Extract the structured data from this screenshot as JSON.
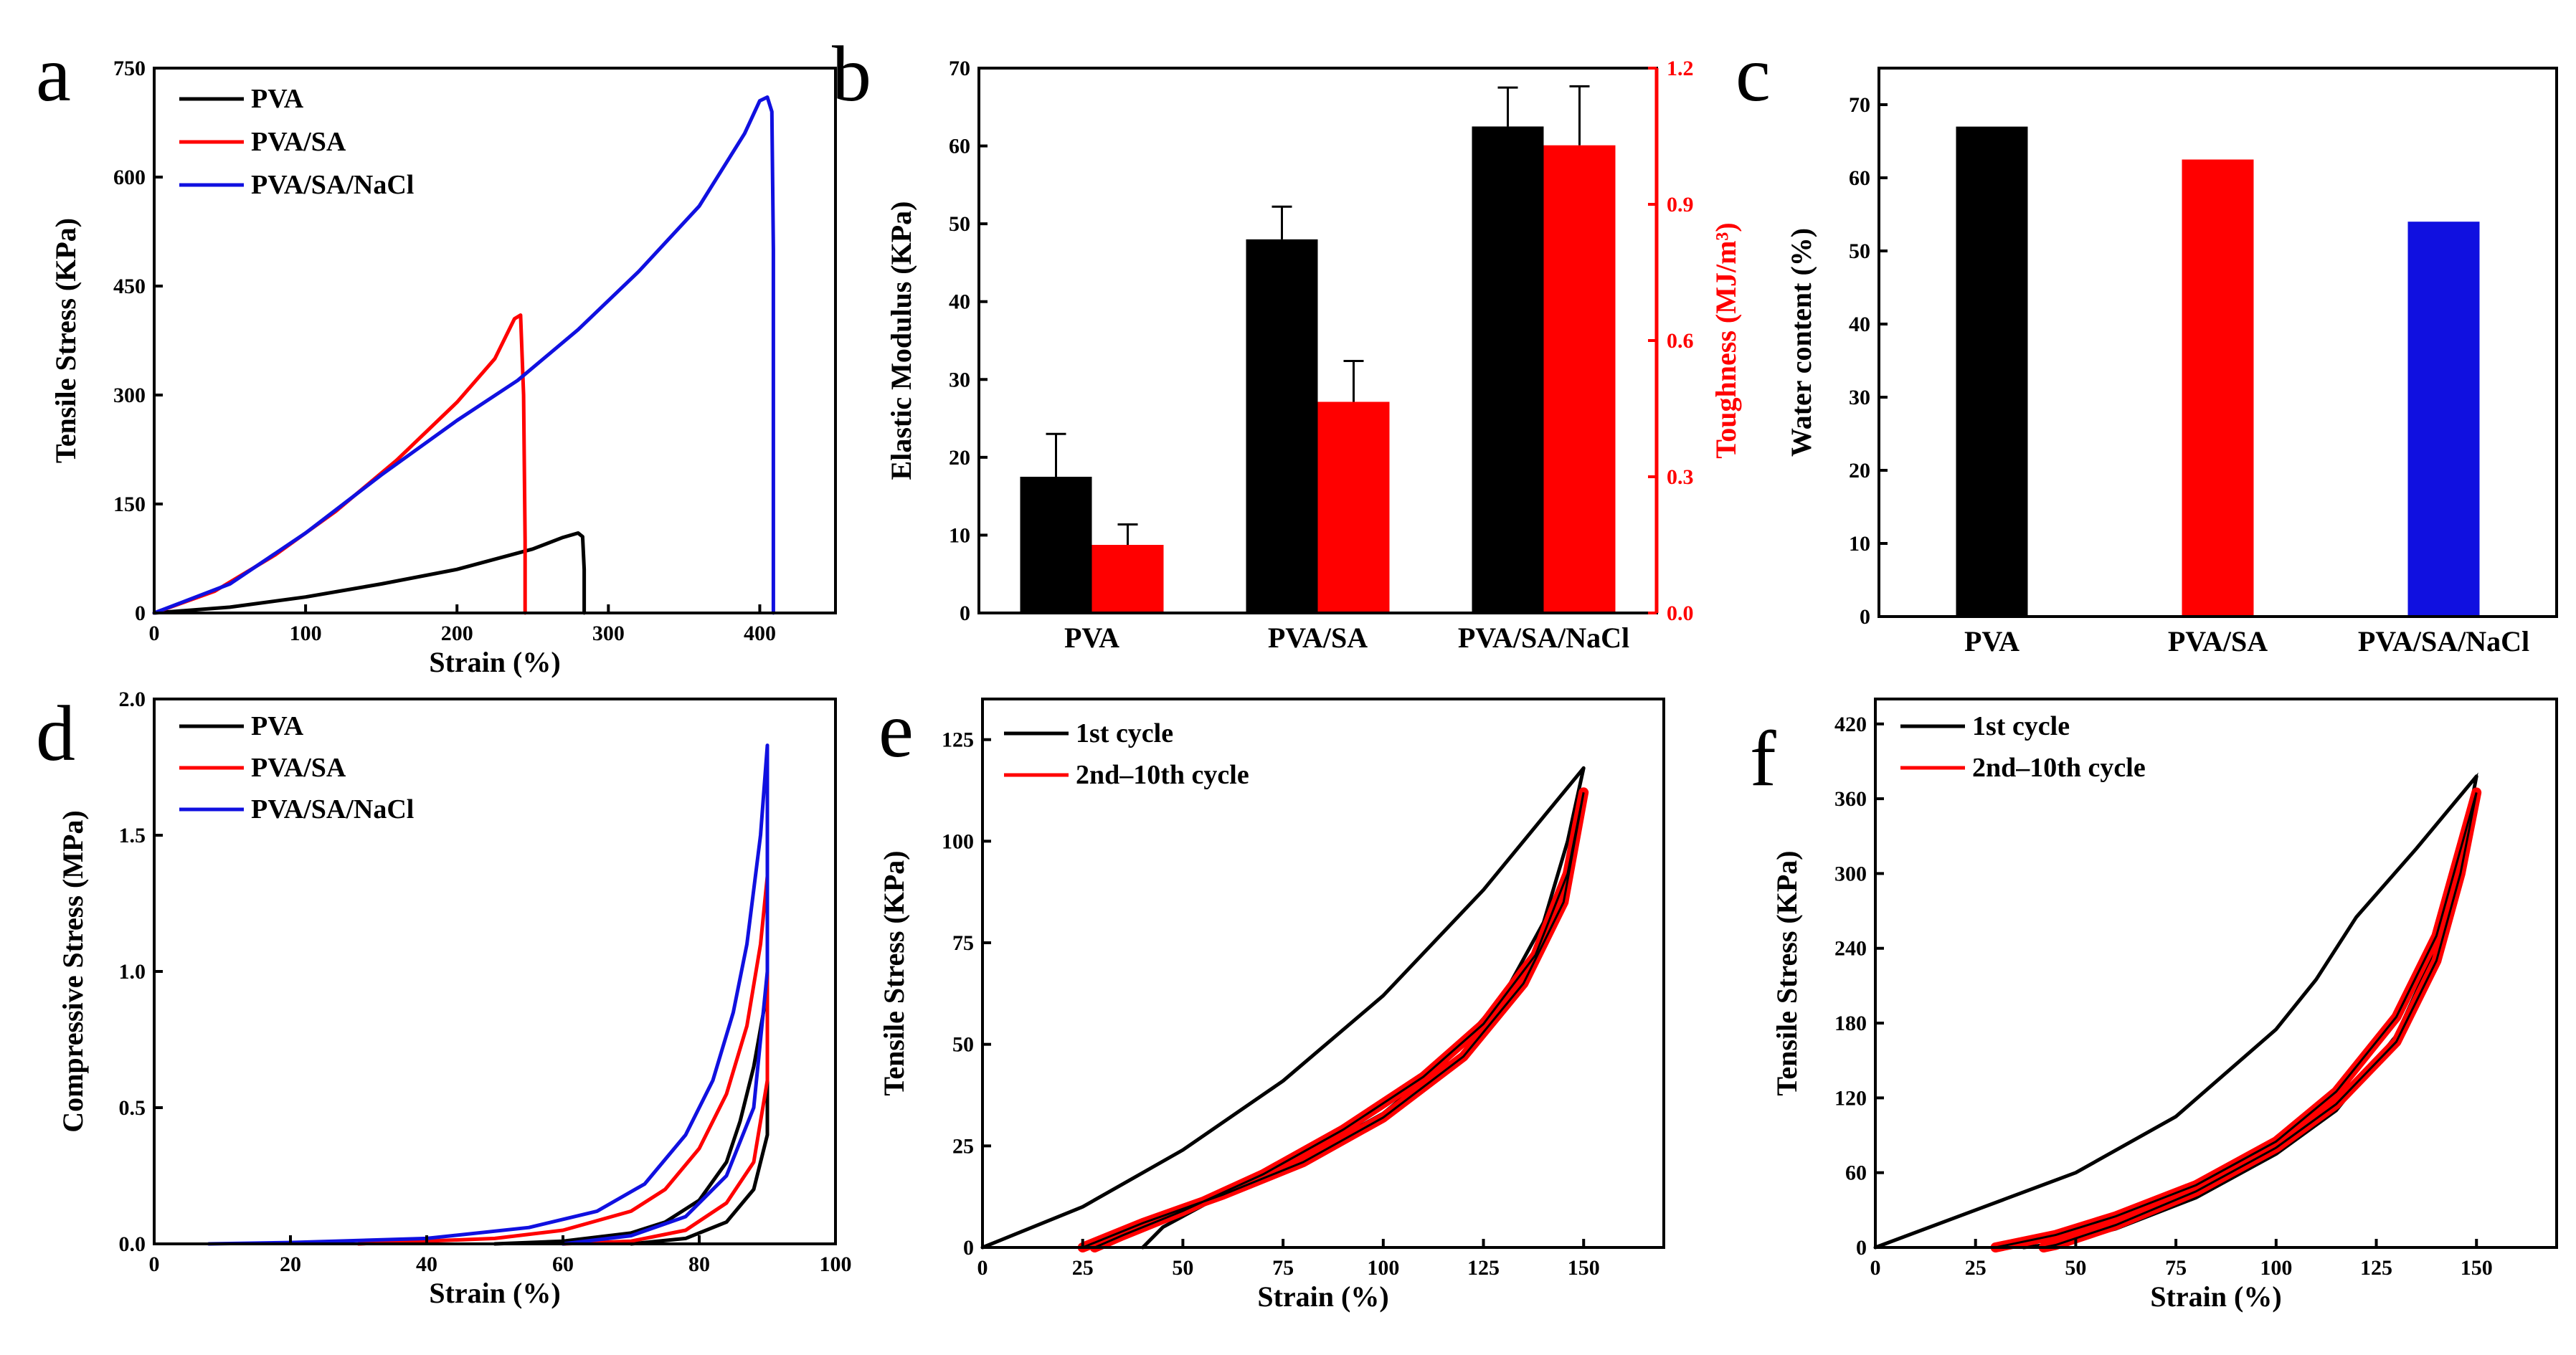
{
  "colors": {
    "black": "#000000",
    "red": "#ff0000",
    "blue": "#1010e0"
  },
  "chart_data": [
    {
      "id": "a",
      "type": "line",
      "letter": "a",
      "xlabel": "Strain (%)",
      "ylabel": "Tensile Stress (KPa)",
      "xlim": [
        0,
        450
      ],
      "ylim": [
        0,
        750
      ],
      "xticks": [
        0,
        100,
        200,
        300,
        400
      ],
      "yticks": [
        0,
        150,
        300,
        450,
        600,
        750
      ],
      "series": [
        {
          "name": "PVA",
          "color": "#000000",
          "points": [
            [
              0,
              0
            ],
            [
              50,
              8
            ],
            [
              100,
              22
            ],
            [
              150,
              40
            ],
            [
              200,
              60
            ],
            [
              250,
              88
            ],
            [
              270,
              104
            ],
            [
              280,
              110
            ],
            [
              283,
              105
            ],
            [
              284,
              60
            ],
            [
              284,
              0
            ]
          ]
        },
        {
          "name": "PVA/SA",
          "color": "#ff0000",
          "points": [
            [
              0,
              0
            ],
            [
              40,
              30
            ],
            [
              80,
              80
            ],
            [
              120,
              140
            ],
            [
              160,
              210
            ],
            [
              200,
              290
            ],
            [
              225,
              350
            ],
            [
              238,
              405
            ],
            [
              242,
              410
            ],
            [
              244,
              300
            ],
            [
              245,
              100
            ],
            [
              245,
              0
            ]
          ]
        },
        {
          "name": "PVA/SA/NaCl",
          "color": "#1010e0",
          "points": [
            [
              0,
              0
            ],
            [
              50,
              40
            ],
            [
              100,
              110
            ],
            [
              150,
              190
            ],
            [
              200,
              265
            ],
            [
              240,
              320
            ],
            [
              280,
              390
            ],
            [
              320,
              470
            ],
            [
              360,
              560
            ],
            [
              390,
              660
            ],
            [
              400,
              705
            ],
            [
              405,
              710
            ],
            [
              408,
              690
            ],
            [
              409,
              500
            ],
            [
              409,
              0
            ]
          ]
        }
      ]
    },
    {
      "id": "b",
      "type": "bar",
      "letter": "b",
      "categories": [
        "PVA",
        "PVA/SA",
        "PVA/SA/NaCl"
      ],
      "ylabel": "Elastic Modulus (KPa)",
      "y2label": "Toughness (MJ/m³)",
      "ylim": [
        0,
        70
      ],
      "y2lim": [
        0,
        1.2
      ],
      "yticks": [
        0,
        10,
        20,
        30,
        40,
        50,
        60,
        70
      ],
      "y2ticks": [
        "0.0",
        "0.3",
        "0.6",
        "0.9",
        "1.2"
      ],
      "series": [
        {
          "name": "Elastic Modulus",
          "axis": "left",
          "color": "#000000",
          "values": [
            17.5,
            48,
            62.5
          ],
          "errors": [
            5.5,
            4.2,
            5
          ]
        },
        {
          "name": "Toughness",
          "axis": "right",
          "color": "#ff0000",
          "values": [
            0.15,
            0.465,
            1.03
          ],
          "errors": [
            0.045,
            0.09,
            0.13
          ]
        }
      ]
    },
    {
      "id": "c",
      "type": "bar",
      "letter": "c",
      "categories": [
        "PVA",
        "PVA/SA",
        "PVA/SA/NaCl"
      ],
      "ylabel": "Water content (%)",
      "ylim": [
        0,
        75
      ],
      "yticks": [
        0,
        10,
        20,
        30,
        40,
        50,
        60,
        70
      ],
      "values": [
        67,
        62.5,
        54
      ],
      "colors": [
        "#000000",
        "#ff0000",
        "#1010e0"
      ]
    },
    {
      "id": "d",
      "type": "line",
      "letter": "d",
      "xlabel": "Strain (%)",
      "ylabel": "Compressive Stress (MPa)",
      "xlim": [
        0,
        100
      ],
      "ylim": [
        0,
        2.0
      ],
      "xticks": [
        0,
        20,
        40,
        60,
        80,
        100
      ],
      "yticks": [
        "0.0",
        "0.5",
        "1.0",
        "1.5",
        "2.0"
      ],
      "series": [
        {
          "name": "PVA",
          "color": "#000000",
          "points": [
            [
              50,
              0
            ],
            [
              60,
              0.01
            ],
            [
              70,
              0.04
            ],
            [
              75,
              0.08
            ],
            [
              80,
              0.16
            ],
            [
              84,
              0.3
            ],
            [
              86,
              0.45
            ],
            [
              88,
              0.65
            ],
            [
              90,
              0.93
            ],
            [
              90,
              0.4
            ],
            [
              88,
              0.2
            ],
            [
              84,
              0.08
            ],
            [
              78,
              0.02
            ],
            [
              70,
              0.0
            ]
          ]
        },
        {
          "name": "PVA/SA",
          "color": "#ff0000",
          "points": [
            [
              30,
              0
            ],
            [
              50,
              0.02
            ],
            [
              60,
              0.05
            ],
            [
              70,
              0.12
            ],
            [
              75,
              0.2
            ],
            [
              80,
              0.35
            ],
            [
              84,
              0.55
            ],
            [
              87,
              0.8
            ],
            [
              89,
              1.1
            ],
            [
              90,
              1.35
            ],
            [
              90,
              0.6
            ],
            [
              88,
              0.3
            ],
            [
              84,
              0.15
            ],
            [
              78,
              0.05
            ],
            [
              70,
              0.01
            ],
            [
              60,
              0.0
            ]
          ]
        },
        {
          "name": "PVA/SA/NaCl",
          "color": "#1010e0",
          "points": [
            [
              8,
              0
            ],
            [
              20,
              0.005
            ],
            [
              40,
              0.02
            ],
            [
              55,
              0.06
            ],
            [
              65,
              0.12
            ],
            [
              72,
              0.22
            ],
            [
              78,
              0.4
            ],
            [
              82,
              0.6
            ],
            [
              85,
              0.85
            ],
            [
              87,
              1.1
            ],
            [
              89,
              1.5
            ],
            [
              90,
              1.83
            ],
            [
              90,
              1.0
            ],
            [
              88,
              0.5
            ],
            [
              84,
              0.25
            ],
            [
              78,
              0.1
            ],
            [
              70,
              0.03
            ],
            [
              60,
              0.0
            ]
          ]
        }
      ]
    },
    {
      "id": "e",
      "type": "line",
      "letter": "e",
      "xlabel": "Strain (%)",
      "ylabel": "Tensile Stress (KPa)",
      "xlim": [
        0,
        170
      ],
      "ylim": [
        0,
        135
      ],
      "xticks": [
        0,
        25,
        50,
        75,
        100,
        125,
        150
      ],
      "yticks": [
        0,
        25,
        50,
        75,
        100,
        125
      ],
      "series": [
        {
          "name": "1st cycle",
          "color": "#000000",
          "points": [
            [
              0,
              0
            ],
            [
              25,
              10
            ],
            [
              50,
              24
            ],
            [
              75,
              41
            ],
            [
              100,
              62
            ],
            [
              125,
              88
            ],
            [
              150,
              118
            ],
            [
              146,
              100
            ],
            [
              140,
              80
            ],
            [
              130,
              62
            ],
            [
              115,
              45
            ],
            [
              100,
              33
            ],
            [
              80,
              22
            ],
            [
              60,
              13
            ],
            [
              45,
              5
            ],
            [
              40,
              0
            ]
          ]
        },
        {
          "name": "2nd–10th cycle",
          "color": "#ff0000",
          "points": [
            [
              25,
              0
            ],
            [
              40,
              6
            ],
            [
              60,
              13
            ],
            [
              80,
              21
            ],
            [
              100,
              32
            ],
            [
              120,
              47
            ],
            [
              135,
              65
            ],
            [
              145,
              85
            ],
            [
              150,
              112
            ],
            [
              146,
              92
            ],
            [
              138,
              72
            ],
            [
              125,
              55
            ],
            [
              110,
              42
            ],
            [
              90,
              29
            ],
            [
              70,
              18
            ],
            [
              50,
              9
            ],
            [
              35,
              3
            ],
            [
              28,
              0
            ]
          ]
        }
      ]
    },
    {
      "id": "f",
      "type": "line",
      "letter": "f",
      "xlabel": "Strain (%)",
      "ylabel": "Tensile Stress (KPa)",
      "xlim": [
        0,
        170
      ],
      "ylim": [
        0,
        440
      ],
      "xticks": [
        0,
        25,
        50,
        75,
        100,
        125,
        150
      ],
      "yticks": [
        0,
        60,
        120,
        180,
        240,
        300,
        360,
        420
      ],
      "series": [
        {
          "name": "1st cycle",
          "color": "#000000",
          "points": [
            [
              0,
              0
            ],
            [
              25,
              30
            ],
            [
              50,
              60
            ],
            [
              75,
              105
            ],
            [
              100,
              175
            ],
            [
              110,
              215
            ],
            [
              120,
              265
            ],
            [
              135,
              320
            ],
            [
              150,
              378
            ],
            [
              146,
              310
            ],
            [
              140,
              240
            ],
            [
              130,
              170
            ],
            [
              115,
              110
            ],
            [
              100,
              75
            ],
            [
              80,
              40
            ],
            [
              60,
              15
            ],
            [
              45,
              3
            ],
            [
              37,
              0
            ]
          ]
        },
        {
          "name": "2nd–10th cycle",
          "color": "#ff0000",
          "points": [
            [
              30,
              0
            ],
            [
              45,
              10
            ],
            [
              60,
              25
            ],
            [
              80,
              50
            ],
            [
              100,
              85
            ],
            [
              115,
              125
            ],
            [
              130,
              185
            ],
            [
              140,
              250
            ],
            [
              150,
              365
            ],
            [
              146,
              300
            ],
            [
              140,
              230
            ],
            [
              130,
              165
            ],
            [
              115,
              115
            ],
            [
              100,
              80
            ],
            [
              80,
              45
            ],
            [
              60,
              18
            ],
            [
              45,
              2
            ],
            [
              42,
              0
            ]
          ]
        }
      ]
    }
  ]
}
